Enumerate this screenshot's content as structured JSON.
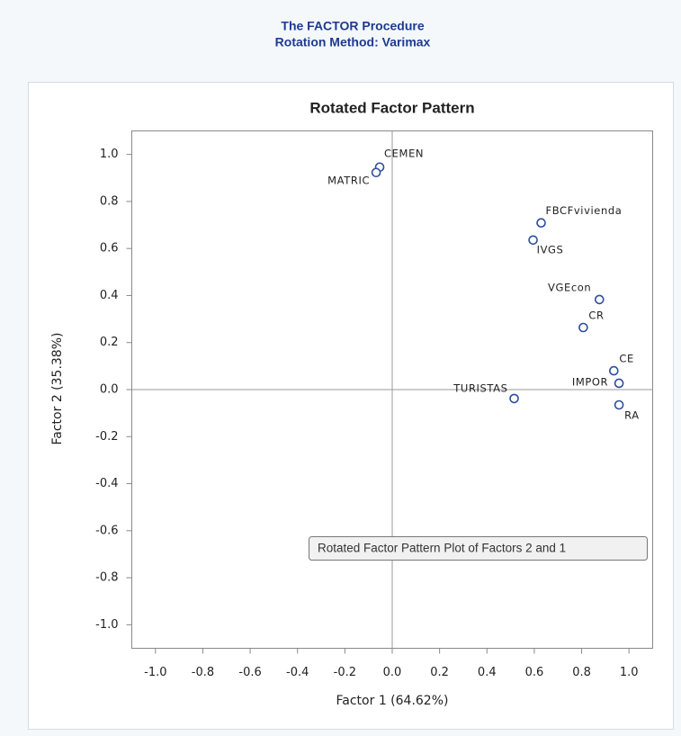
{
  "header": {
    "title": "The FACTOR Procedure",
    "subtitle": "Rotation Method: Varimax"
  },
  "chart_data": {
    "type": "scatter",
    "title": "Rotated Factor Pattern",
    "x_label": "Factor 1 (64.62%)",
    "y_label": "Factor 2 (35.38%)",
    "tooltip": "Rotated Factor Pattern Plot of Factors 2 and 1",
    "labels": [
      "CEMEN",
      "MATRIC",
      "FBCFvivienda",
      "IVGS",
      "VGEcon",
      "CR",
      "CE",
      "IMPOR",
      "RA",
      "TURISTAS"
    ],
    "x": [
      -0.053,
      -0.068,
      0.629,
      0.595,
      0.875,
      0.807,
      0.936,
      0.958,
      0.958,
      0.515
    ],
    "y": [
      0.946,
      0.923,
      0.709,
      0.636,
      0.383,
      0.264,
      0.08,
      0.027,
      -0.065,
      -0.038
    ],
    "color": "#2c4ea0",
    "xlim": [
      -1.1,
      1.1
    ],
    "ylim": [
      -1.1,
      1.1
    ],
    "xticks": [
      {
        "value": -1,
        "label": "-1.0"
      },
      -0.8,
      -0.6,
      -0.4,
      -0.2,
      {
        "value": 0,
        "label": "0.0"
      },
      0.2,
      0.4,
      0.6,
      0.8,
      {
        "value": 1,
        "label": "1.0"
      }
    ],
    "yticks": [
      {
        "value": -1,
        "label": "-1.0"
      },
      -0.8,
      -0.6,
      -0.4,
      -0.2,
      {
        "value": 0,
        "label": "0.0"
      },
      0.2,
      0.4,
      0.6,
      0.8,
      {
        "value": 1,
        "label": "1.0"
      }
    ]
  }
}
